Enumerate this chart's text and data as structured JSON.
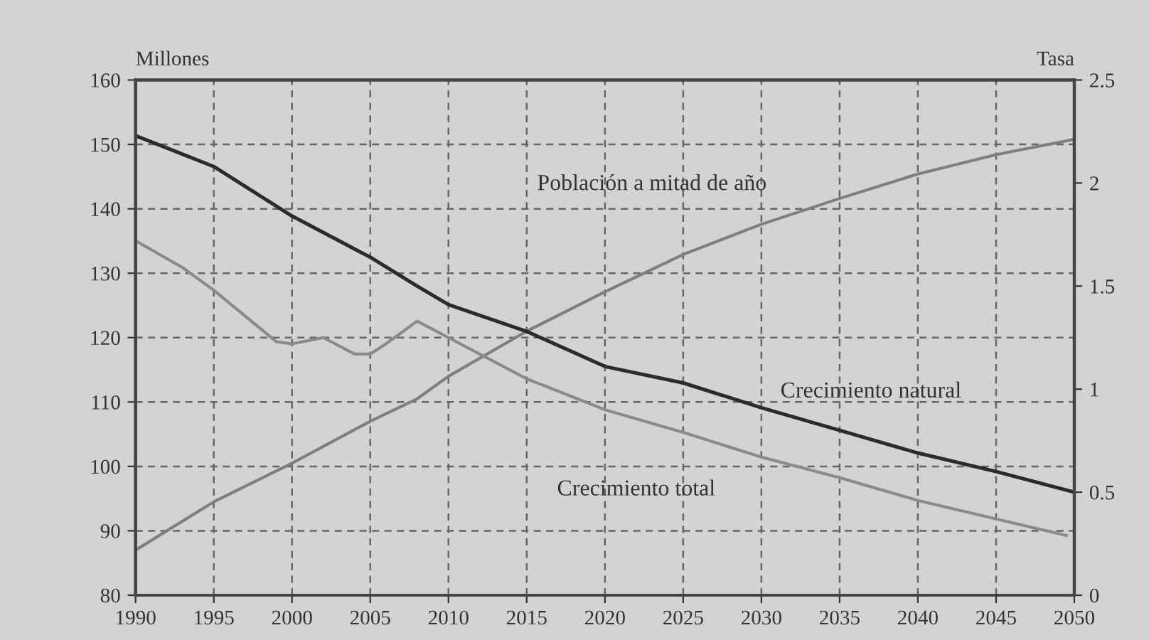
{
  "chart_data": {
    "type": "line",
    "ylabel": "Millones",
    "y2label": "Tasa",
    "xlim": [
      1990,
      2050
    ],
    "xticks": [
      1990,
      1995,
      2000,
      2005,
      2010,
      2015,
      2020,
      2025,
      2030,
      2035,
      2040,
      2045,
      2050
    ],
    "ylim": [
      80,
      160
    ],
    "yticks": [
      80,
      90,
      100,
      110,
      120,
      130,
      140,
      150,
      160
    ],
    "y2lim": [
      0,
      2.5
    ],
    "y2ticks": [
      0,
      0.5,
      1,
      1.5,
      2,
      2.5
    ],
    "grid": true,
    "line_style": "solid",
    "marker": "none",
    "series": [
      {
        "name": "Población a mitad de año",
        "axis": "y",
        "color": "#7f7f7f",
        "x": [
          1990,
          1995,
          2000,
          2005,
          2008,
          2010,
          2015,
          2020,
          2025,
          2030,
          2035,
          2040,
          2045,
          2050
        ],
        "values": [
          87,
          94.5,
          100.5,
          107,
          110.5,
          114,
          121,
          127.1,
          132.9,
          137.6,
          141.6,
          145.4,
          148.4,
          150.8
        ]
      },
      {
        "name": "Crecimiento natural",
        "axis": "y2",
        "color": "#2b2b2b",
        "x": [
          1990,
          1995,
          2000,
          2005,
          2008,
          2010,
          2015,
          2020,
          2025,
          2030,
          2035,
          2040,
          2045,
          2050
        ],
        "values": [
          2.23,
          2.08,
          1.84,
          1.64,
          1.5,
          1.41,
          1.28,
          1.11,
          1.03,
          0.91,
          0.8,
          0.69,
          0.6,
          0.5
        ]
      },
      {
        "name": "Crecimiento total",
        "axis": "y2",
        "color": "#8a8a8a",
        "x": [
          1990,
          1993,
          1995,
          1999,
          2000,
          2002,
          2004,
          2005,
          2006,
          2008,
          2010,
          2013,
          2015,
          2020,
          2025,
          2030,
          2035,
          2040,
          2045,
          2049.5
        ],
        "values": [
          1.72,
          1.59,
          1.48,
          1.23,
          1.22,
          1.25,
          1.17,
          1.17,
          1.22,
          1.33,
          1.25,
          1.13,
          1.05,
          0.9,
          0.79,
          0.67,
          0.57,
          0.46,
          0.37,
          0.29
        ]
      }
    ]
  }
}
